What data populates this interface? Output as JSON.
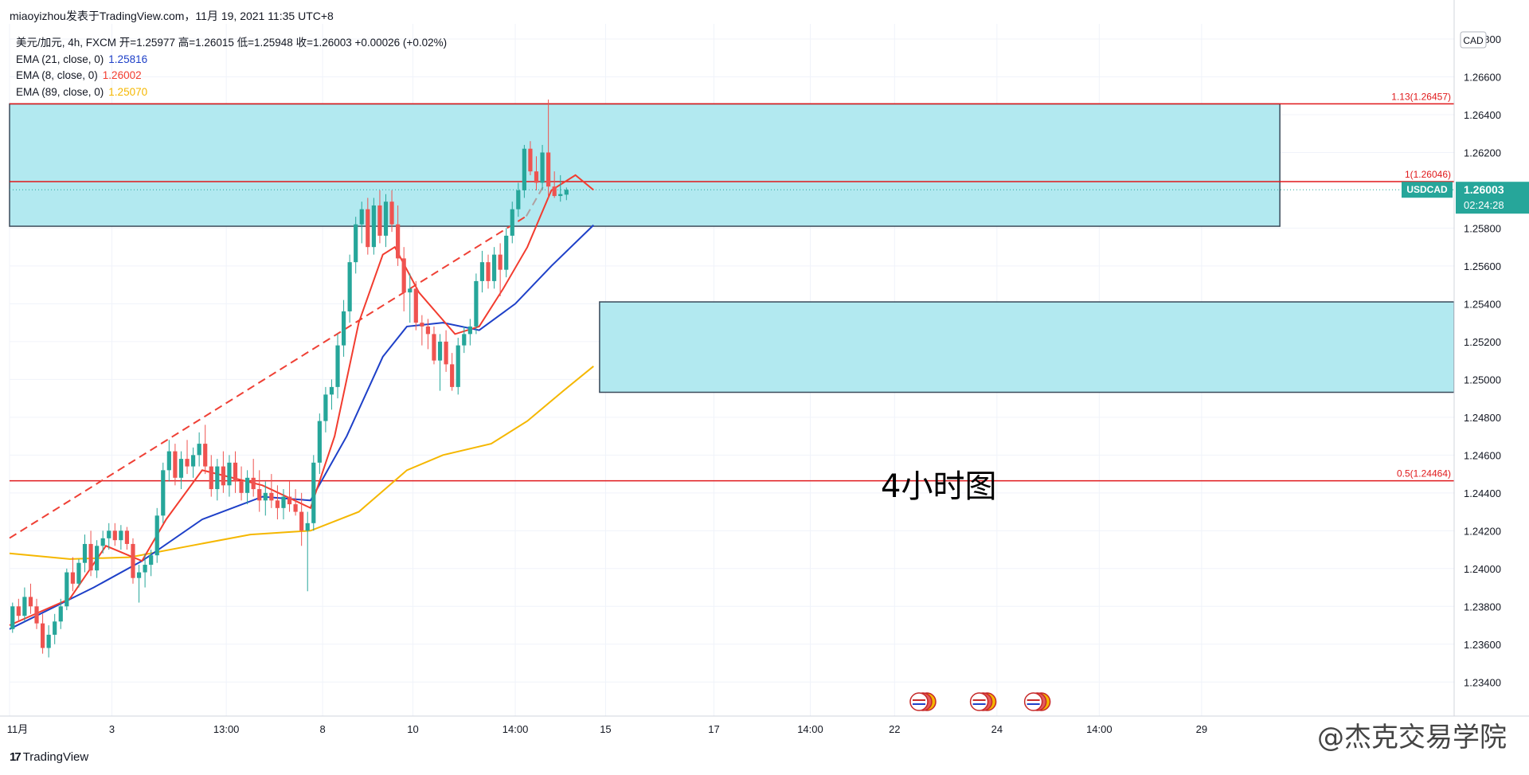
{
  "header": {
    "byline": "miaoyizhou发表于TradingView.com，11月 19, 2021 11:35 UTC+8"
  },
  "legend": {
    "symbol_line": "美元/加元, 4h, FXCM  开=1.25977  高=1.26015  低=1.25948  收=1.26003  +0.00026 (+0.02%)",
    "ema21_label": "EMA (21, close, 0)",
    "ema21_value": "1.25816",
    "ema8_label": "EMA (8, close, 0)",
    "ema8_value": "1.26002",
    "ema89_label": "EMA (89, close, 0)",
    "ema89_value": "1.25070"
  },
  "annotation": "4小时图",
  "footer": {
    "logo_mark": "17",
    "logo_text": "TradingView"
  },
  "credit": "@杰克交易学院",
  "colors": {
    "up": "#26a69a",
    "down": "#ef5350",
    "ema8": "#f23c2f",
    "ema21": "#1e40c8",
    "ema89": "#f5b700",
    "zone": "#b2e9f0",
    "redline": "#e0191b",
    "price_tag": "#26a69a"
  },
  "chart_data": {
    "type": "candlestick",
    "symbol": "USDCAD",
    "currency": "CAD",
    "timeframe": "4h",
    "current_price": "1.26003",
    "countdown": "02:24:28",
    "y_ticks": [
      "1.26800",
      "1.26600",
      "1.26400",
      "1.26200",
      "1.25800",
      "1.25600",
      "1.25400",
      "1.25200",
      "1.25000",
      "1.24800",
      "1.24600",
      "1.24400",
      "1.24200",
      "1.24000",
      "1.23800",
      "1.23600",
      "1.23400"
    ],
    "y_tick_values": [
      1.268,
      1.266,
      1.264,
      1.262,
      1.258,
      1.256,
      1.254,
      1.252,
      1.25,
      1.248,
      1.246,
      1.244,
      1.242,
      1.24,
      1.238,
      1.236,
      1.234
    ],
    "y_range": [
      1.2322,
      1.2688
    ],
    "x_tick_labels": [
      "11月",
      "3",
      "13:00",
      "8",
      "10",
      "14:00",
      "15",
      "17",
      "14:00",
      "22",
      "24",
      "14:00",
      "29"
    ],
    "x_tick_bars": [
      0,
      17,
      36,
      52,
      67,
      84,
      99,
      117,
      133,
      147,
      164,
      181,
      198
    ],
    "horizontal_levels": [
      {
        "label": "1.13(1.26457)",
        "value": 1.26457
      },
      {
        "label": "1(1.26046)",
        "value": 1.26046
      },
      {
        "label": "0.5(1.24464)",
        "value": 1.24464
      }
    ],
    "zones": [
      {
        "from_bar": 0,
        "to_bar": 211,
        "top": 1.26457,
        "bottom": 1.2581
      },
      {
        "from_bar": 98,
        "to_bar": 222,
        "top": 1.2541,
        "bottom": 1.24932
      }
    ],
    "projection_line": {
      "from": [
        0,
        1.2422
      ],
      "to": [
        89,
        1.2604
      ]
    },
    "event_icon_bars": [
      150,
      160,
      169
    ],
    "candles": [
      [
        1.2368,
        1.2382,
        1.2366,
        1.238
      ],
      [
        1.238,
        1.2384,
        1.2372,
        1.2375
      ],
      [
        1.2375,
        1.239,
        1.2372,
        1.2385
      ],
      [
        1.2385,
        1.2392,
        1.2376,
        1.238
      ],
      [
        1.238,
        1.2384,
        1.2368,
        1.2371
      ],
      [
        1.2371,
        1.2376,
        1.2355,
        1.2358
      ],
      [
        1.2358,
        1.237,
        1.2353,
        1.2365
      ],
      [
        1.2365,
        1.2376,
        1.236,
        1.2372
      ],
      [
        1.2372,
        1.2384,
        1.2368,
        1.238
      ],
      [
        1.238,
        1.24,
        1.2378,
        1.2398
      ],
      [
        1.2398,
        1.2406,
        1.2388,
        1.2392
      ],
      [
        1.2392,
        1.2405,
        1.239,
        1.2403
      ],
      [
        1.2403,
        1.2418,
        1.2398,
        1.2413
      ],
      [
        1.2413,
        1.242,
        1.2396,
        1.2399
      ],
      [
        1.2399,
        1.2415,
        1.2395,
        1.2412
      ],
      [
        1.2412,
        1.242,
        1.2408,
        1.2416
      ],
      [
        1.2416,
        1.2424,
        1.241,
        1.242
      ],
      [
        1.242,
        1.2424,
        1.2412,
        1.2415
      ],
      [
        1.2415,
        1.2423,
        1.241,
        1.242
      ],
      [
        1.242,
        1.2422,
        1.241,
        1.2413
      ],
      [
        1.2413,
        1.2416,
        1.2392,
        1.2395
      ],
      [
        1.2395,
        1.2402,
        1.2382,
        1.2398
      ],
      [
        1.2398,
        1.2408,
        1.239,
        1.2402
      ],
      [
        1.2402,
        1.241,
        1.2396,
        1.2407
      ],
      [
        1.2407,
        1.2432,
        1.2403,
        1.2428
      ],
      [
        1.2428,
        1.2456,
        1.2424,
        1.2452
      ],
      [
        1.2452,
        1.2468,
        1.2446,
        1.2462
      ],
      [
        1.2462,
        1.2466,
        1.2444,
        1.2448
      ],
      [
        1.2448,
        1.2462,
        1.2442,
        1.2458
      ],
      [
        1.2458,
        1.2468,
        1.245,
        1.2454
      ],
      [
        1.2454,
        1.2464,
        1.2448,
        1.246
      ],
      [
        1.246,
        1.2472,
        1.2454,
        1.2466
      ],
      [
        1.2466,
        1.2476,
        1.245,
        1.2454
      ],
      [
        1.2454,
        1.246,
        1.2438,
        1.2442
      ],
      [
        1.2442,
        1.2458,
        1.2436,
        1.2454
      ],
      [
        1.2454,
        1.2462,
        1.244,
        1.2444
      ],
      [
        1.2444,
        1.246,
        1.2438,
        1.2456
      ],
      [
        1.2456,
        1.2462,
        1.244,
        1.2446
      ],
      [
        1.2446,
        1.2454,
        1.2436,
        1.244
      ],
      [
        1.244,
        1.2452,
        1.2434,
        1.2448
      ],
      [
        1.2448,
        1.2458,
        1.2438,
        1.2442
      ],
      [
        1.2442,
        1.2452,
        1.243,
        1.2436
      ],
      [
        1.2436,
        1.2446,
        1.2428,
        1.244
      ],
      [
        1.244,
        1.245,
        1.2432,
        1.2436
      ],
      [
        1.2436,
        1.2444,
        1.2426,
        1.2432
      ],
      [
        1.2432,
        1.2442,
        1.2426,
        1.2438
      ],
      [
        1.2438,
        1.2446,
        1.243,
        1.2434
      ],
      [
        1.2434,
        1.2442,
        1.2428,
        1.243
      ],
      [
        1.243,
        1.244,
        1.2412,
        1.242
      ],
      [
        1.242,
        1.243,
        1.2388,
        1.2424
      ],
      [
        1.2424,
        1.246,
        1.242,
        1.2456
      ],
      [
        1.2456,
        1.2482,
        1.245,
        1.2478
      ],
      [
        1.2478,
        1.2496,
        1.2472,
        1.2492
      ],
      [
        1.2492,
        1.25,
        1.2484,
        1.2496
      ],
      [
        1.2496,
        1.2524,
        1.249,
        1.2518
      ],
      [
        1.2518,
        1.2542,
        1.2512,
        1.2536
      ],
      [
        1.2536,
        1.2566,
        1.253,
        1.2562
      ],
      [
        1.2562,
        1.2586,
        1.2556,
        1.2582
      ],
      [
        1.2582,
        1.2594,
        1.2572,
        1.259
      ],
      [
        1.259,
        1.2596,
        1.2566,
        1.257
      ],
      [
        1.257,
        1.2596,
        1.2566,
        1.2592
      ],
      [
        1.2592,
        1.26,
        1.2572,
        1.2576
      ],
      [
        1.2576,
        1.2598,
        1.257,
        1.2594
      ],
      [
        1.2594,
        1.26,
        1.2578,
        1.2582
      ],
      [
        1.2582,
        1.2592,
        1.256,
        1.2564
      ],
      [
        1.2564,
        1.257,
        1.2536,
        1.2546
      ],
      [
        1.2546,
        1.2556,
        1.253,
        1.2548
      ],
      [
        1.2548,
        1.2552,
        1.2526,
        1.253
      ],
      [
        1.253,
        1.2534,
        1.2518,
        1.2528
      ],
      [
        1.2528,
        1.2532,
        1.2516,
        1.2524
      ],
      [
        1.2524,
        1.2528,
        1.2508,
        1.251
      ],
      [
        1.251,
        1.2524,
        1.2494,
        1.252
      ],
      [
        1.252,
        1.2526,
        1.2504,
        1.2508
      ],
      [
        1.2508,
        1.2514,
        1.2494,
        1.2496
      ],
      [
        1.2496,
        1.2522,
        1.2492,
        1.2518
      ],
      [
        1.2518,
        1.2528,
        1.2514,
        1.2524
      ],
      [
        1.2524,
        1.2532,
        1.2518,
        1.2528
      ],
      [
        1.2528,
        1.2556,
        1.2524,
        1.2552
      ],
      [
        1.2552,
        1.2568,
        1.2546,
        1.2562
      ],
      [
        1.2562,
        1.2566,
        1.2548,
        1.2552
      ],
      [
        1.2552,
        1.257,
        1.2548,
        1.2566
      ],
      [
        1.2566,
        1.2572,
        1.2544,
        1.2558
      ],
      [
        1.2558,
        1.258,
        1.2554,
        1.2576
      ],
      [
        1.2576,
        1.2594,
        1.2572,
        1.259
      ],
      [
        1.259,
        1.2604,
        1.2586,
        1.26
      ],
      [
        1.26,
        1.2624,
        1.2596,
        1.2622
      ],
      [
        1.2622,
        1.2626,
        1.2608,
        1.261
      ],
      [
        1.261,
        1.2618,
        1.26,
        1.2604
      ],
      [
        1.2604,
        1.2624,
        1.26,
        1.262
      ],
      [
        1.262,
        1.2648,
        1.2596,
        1.2602
      ],
      [
        1.2602,
        1.261,
        1.2596,
        1.2597
      ],
      [
        1.2597,
        1.2608,
        1.2594,
        1.2598
      ],
      [
        1.25977,
        1.26015,
        1.25948,
        1.26003
      ]
    ],
    "candle_start_bar": 0,
    "candle_bar_offset": 0,
    "ema8": [
      [
        0,
        1.237
      ],
      [
        10,
        1.2384
      ],
      [
        16,
        1.2412
      ],
      [
        22,
        1.2404
      ],
      [
        26,
        1.2426
      ],
      [
        32,
        1.2452
      ],
      [
        42,
        1.2444
      ],
      [
        50,
        1.2432
      ],
      [
        54,
        1.247
      ],
      [
        58,
        1.253
      ],
      [
        62,
        1.2566
      ],
      [
        64,
        1.257
      ],
      [
        68,
        1.2546
      ],
      [
        74,
        1.2524
      ],
      [
        78,
        1.2528
      ],
      [
        82,
        1.2548
      ],
      [
        86,
        1.257
      ],
      [
        90,
        1.26
      ],
      [
        94,
        1.2608
      ],
      [
        97,
        1.26002
      ]
    ],
    "ema21": [
      [
        0,
        1.2368
      ],
      [
        14,
        1.239
      ],
      [
        22,
        1.2404
      ],
      [
        32,
        1.2426
      ],
      [
        42,
        1.2438
      ],
      [
        50,
        1.2436
      ],
      [
        56,
        1.247
      ],
      [
        62,
        1.2512
      ],
      [
        66,
        1.2528
      ],
      [
        72,
        1.253
      ],
      [
        78,
        1.2526
      ],
      [
        84,
        1.254
      ],
      [
        90,
        1.256
      ],
      [
        97,
        1.25816
      ]
    ],
    "ema89": [
      [
        0,
        1.2408
      ],
      [
        10,
        1.2405
      ],
      [
        20,
        1.2406
      ],
      [
        30,
        1.2412
      ],
      [
        40,
        1.2418
      ],
      [
        50,
        1.242
      ],
      [
        58,
        1.243
      ],
      [
        66,
        1.2452
      ],
      [
        72,
        1.246
      ],
      [
        80,
        1.2466
      ],
      [
        86,
        1.2478
      ],
      [
        92,
        1.2494
      ],
      [
        97,
        1.2507
      ]
    ]
  }
}
